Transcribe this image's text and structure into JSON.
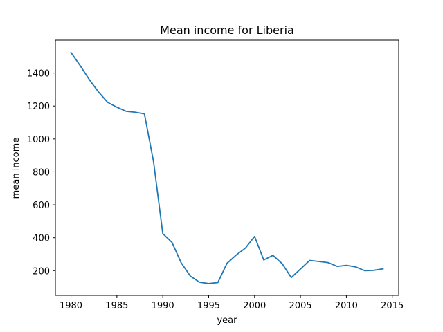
{
  "chart_data": {
    "type": "line",
    "title": "Mean income for Liberia",
    "xlabel": "year",
    "ylabel": "mean income",
    "xlim": [
      1978.3,
      2015.7
    ],
    "ylim": [
      50,
      1600
    ],
    "xticks": [
      1980,
      1985,
      1990,
      1995,
      2000,
      2005,
      2010,
      2015
    ],
    "yticks": [
      200,
      400,
      600,
      800,
      1000,
      1200,
      1400
    ],
    "grid": false,
    "series": [
      {
        "color": "#1f77b4",
        "x": [
          1980,
          1981,
          1982,
          1983,
          1984,
          1985,
          1986,
          1987,
          1988,
          1989,
          1990,
          1991,
          1992,
          1993,
          1994,
          1995,
          1996,
          1997,
          1998,
          1999,
          2000,
          2001,
          2002,
          2003,
          2004,
          2005,
          2006,
          2007,
          2008,
          2009,
          2010,
          2011,
          2012,
          2013,
          2014
        ],
        "values": [
          1525,
          1445,
          1360,
          1285,
          1222,
          1193,
          1168,
          1162,
          1152,
          860,
          425,
          372,
          248,
          167,
          130,
          122,
          128,
          245,
          295,
          337,
          408,
          265,
          293,
          243,
          158,
          210,
          262,
          256,
          249,
          226,
          232,
          223,
          200,
          202,
          211
        ]
      }
    ]
  }
}
